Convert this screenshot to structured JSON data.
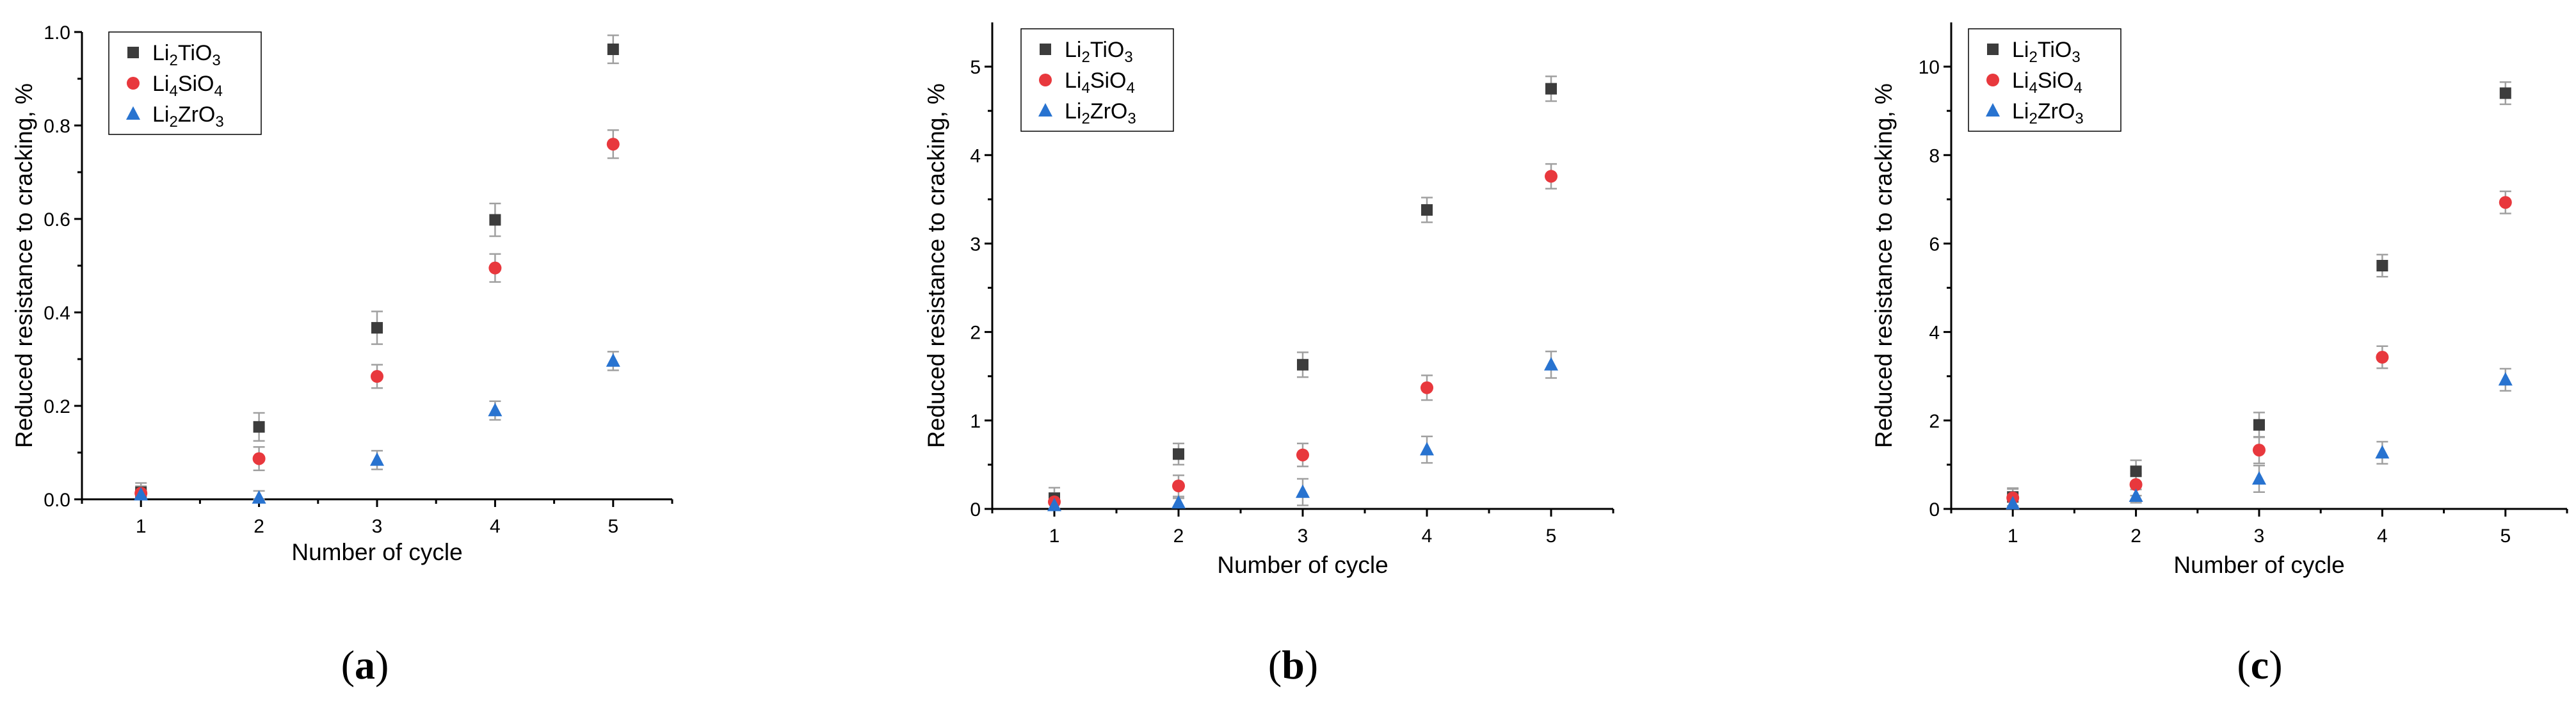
{
  "chart_data": [
    {
      "type": "scatter",
      "panel_label": "a",
      "xlabel": "Number of cycle",
      "ylabel": "Reduced resistance to cracking, %",
      "x": [
        1,
        2,
        3,
        4,
        5
      ],
      "xlim": [
        0.5,
        5.5
      ],
      "ylim": [
        0,
        1.0
      ],
      "yticks": [
        "0.0",
        "0.2",
        "0.4",
        "0.6",
        "0.8",
        "1.0"
      ],
      "legend_position": "top-left",
      "series": [
        {
          "name": "Li2TiO3",
          "values": [
            0.015,
            0.155,
            0.367,
            0.598,
            0.963
          ],
          "errors": [
            0.02,
            0.03,
            0.035,
            0.035,
            0.03
          ]
        },
        {
          "name": "Li4SiO4",
          "values": [
            0.013,
            0.087,
            0.263,
            0.495,
            0.76
          ],
          "errors": [
            0.015,
            0.025,
            0.025,
            0.03,
            0.03
          ]
        },
        {
          "name": "Li2ZrO3",
          "values": [
            0.01,
            0.003,
            0.084,
            0.19,
            0.296
          ],
          "errors": [
            0.01,
            0.015,
            0.02,
            0.02,
            0.02
          ]
        }
      ]
    },
    {
      "type": "scatter",
      "panel_label": "b",
      "xlabel": "Number of cycle",
      "ylabel": "Reduced resistance to cracking, %",
      "x": [
        1,
        2,
        3,
        4,
        5
      ],
      "xlim": [
        0.5,
        5.5
      ],
      "ylim": [
        0,
        5.5
      ],
      "yticks": [
        "0",
        "1",
        "2",
        "3",
        "4",
        "5"
      ],
      "legend_position": "top-left",
      "series": [
        {
          "name": "Li2TiO3",
          "values": [
            0.12,
            0.62,
            1.63,
            3.38,
            4.75
          ],
          "errors": [
            0.12,
            0.12,
            0.14,
            0.14,
            0.14
          ]
        },
        {
          "name": "Li4SiO4",
          "values": [
            0.08,
            0.26,
            0.61,
            1.37,
            3.76
          ],
          "errors": [
            0.1,
            0.12,
            0.13,
            0.14,
            0.14
          ]
        },
        {
          "name": "Li2ZrO3",
          "values": [
            0.04,
            0.07,
            0.19,
            0.67,
            1.63
          ],
          "errors": [
            0.04,
            0.05,
            0.15,
            0.15,
            0.15
          ]
        }
      ]
    },
    {
      "type": "scatter",
      "panel_label": "c",
      "xlabel": "Number of cycle",
      "ylabel": "Reduced resistance to cracking, %",
      "x": [
        1,
        2,
        3,
        4,
        5
      ],
      "xlim": [
        0.5,
        5.5
      ],
      "ylim": [
        0,
        11
      ],
      "yticks": [
        "0",
        "2",
        "4",
        "6",
        "8",
        "10"
      ],
      "legend_position": "top-left",
      "series": [
        {
          "name": "Li2TiO3",
          "values": [
            0.27,
            0.85,
            1.9,
            5.5,
            9.4
          ],
          "errors": [
            0.2,
            0.25,
            0.28,
            0.25,
            0.25
          ]
        },
        {
          "name": "Li4SiO4",
          "values": [
            0.25,
            0.55,
            1.33,
            3.43,
            6.93
          ],
          "errors": [
            0.2,
            0.25,
            0.3,
            0.25,
            0.25
          ]
        },
        {
          "name": "Li2ZrO3",
          "values": [
            0.12,
            0.29,
            0.68,
            1.27,
            2.92
          ],
          "errors": [
            0.1,
            0.15,
            0.3,
            0.25,
            0.25
          ]
        }
      ]
    }
  ],
  "legend_labels": {
    "Li2TiO3": {
      "base1": "Li",
      "sub1": "2",
      "base2": "TiO",
      "sub2": "3"
    },
    "Li4SiO4": {
      "base1": "Li",
      "sub1": "4",
      "base2": "SiO",
      "sub2": "4"
    },
    "Li2ZrO3": {
      "base1": "Li",
      "sub1": "2",
      "base2": "ZrO",
      "sub2": "3"
    }
  },
  "series_colors": {
    "Li2TiO3": "#3c3c3c",
    "Li4SiO4": "#e8383d",
    "Li2ZrO3": "#2873d0"
  },
  "series_markers": {
    "Li2TiO3": "square",
    "Li4SiO4": "circle",
    "Li2ZrO3": "triangle"
  },
  "errorbar_color": "#a0a0a0"
}
